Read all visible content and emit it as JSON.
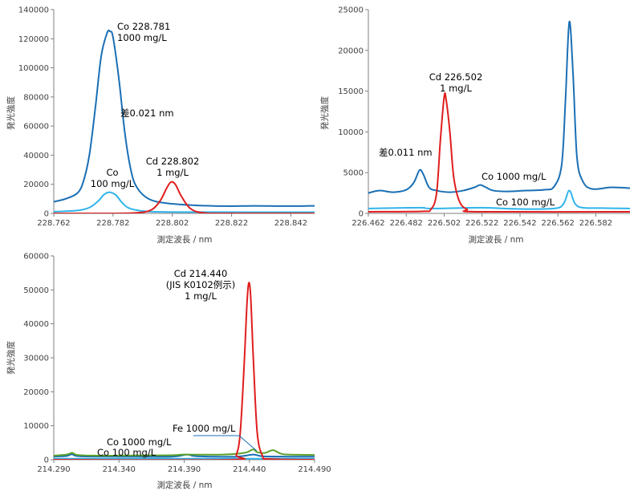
{
  "colors": {
    "co1000": "#1a6fb5",
    "co100": "#31b4ea",
    "cd": "#e01d1d",
    "fe": "#5aa02c",
    "axis": "#7f7f7f",
    "tick_text": "#404040",
    "label_text": "#000000"
  },
  "chart_data": [
    {
      "id": "chart1",
      "type": "line",
      "title": "",
      "xlabel": "測定波長 / nm",
      "ylabel": "発光強度",
      "xlim": [
        228.762,
        228.85
      ],
      "ylim": [
        0,
        140000
      ],
      "x_ticks": [
        228.762,
        228.782,
        228.802,
        228.822,
        228.842
      ],
      "x_tick_labels": [
        "228.762",
        "228.782",
        "228.802",
        "228.822",
        "228.842"
      ],
      "y_ticks": [
        0,
        20000,
        40000,
        60000,
        80000,
        100000,
        120000,
        140000
      ],
      "y_tick_labels": [
        "0",
        "20000",
        "40000",
        "60000",
        "80000",
        "100000",
        "120000",
        "140000"
      ],
      "series": [
        {
          "name": "Co 1000 mg/L",
          "color_key": "co1000",
          "x": [
            228.762,
            228.766,
            228.77,
            228.772,
            228.774,
            228.776,
            228.778,
            228.78,
            228.781,
            228.782,
            228.784,
            228.786,
            228.788,
            228.79,
            228.794,
            228.8,
            228.81,
            228.82,
            228.83,
            228.84,
            228.85
          ],
          "y": [
            8000,
            10000,
            14000,
            22000,
            40000,
            72000,
            108000,
            124000,
            125000,
            121000,
            92000,
            55000,
            30000,
            18000,
            10000,
            7000,
            5500,
            5000,
            5200,
            5000,
            5200
          ]
        },
        {
          "name": "Co 100 mg/L",
          "color_key": "co100",
          "x": [
            228.762,
            228.77,
            228.774,
            228.777,
            228.779,
            228.781,
            228.783,
            228.785,
            228.787,
            228.79,
            228.795,
            228.81,
            228.85
          ],
          "y": [
            1200,
            2000,
            4000,
            8500,
            13000,
            14500,
            12500,
            7500,
            4000,
            2200,
            1200,
            900,
            800
          ]
        },
        {
          "name": "Cd 228.802",
          "color_key": "cd",
          "x": [
            228.762,
            228.78,
            228.79,
            228.795,
            228.798,
            228.8,
            228.8015,
            228.803,
            228.805,
            228.808,
            228.812,
            228.82,
            228.85
          ],
          "y": [
            0,
            0,
            400,
            2500,
            9000,
            17000,
            21500,
            20000,
            12000,
            3500,
            500,
            0,
            0
          ]
        }
      ],
      "annotations": [
        {
          "lines": [
            "Co 228.781",
            "1000 mg/L"
          ]
        },
        {
          "lines": [
            "差0.021 nm"
          ]
        },
        {
          "lines": [
            "Co",
            "100 mg/L"
          ]
        },
        {
          "lines": [
            "Cd 228.802",
            "1 mg/L"
          ]
        }
      ]
    },
    {
      "id": "chart2",
      "type": "line",
      "title": "",
      "xlabel": "測定波長 / nm",
      "ylabel": "発光強度",
      "xlim": [
        226.462,
        226.6
      ],
      "ylim": [
        0,
        25000
      ],
      "x_ticks": [
        226.462,
        226.482,
        226.502,
        226.522,
        226.542,
        226.562,
        226.582
      ],
      "x_tick_labels": [
        "226.462",
        "226.482",
        "226.502",
        "226.522",
        "226.542",
        "226.562",
        "226.582"
      ],
      "y_ticks": [
        0,
        5000,
        10000,
        15000,
        20000,
        25000
      ],
      "y_tick_labels": [
        "0",
        "5000",
        "10000",
        "15000",
        "20000",
        "25000"
      ],
      "series": [
        {
          "name": "Co 1000 mg/L",
          "color_key": "co1000",
          "x": [
            226.462,
            226.468,
            226.475,
            226.482,
            226.486,
            226.489,
            226.491,
            226.494,
            226.498,
            226.505,
            226.512,
            226.518,
            226.521,
            226.524,
            226.528,
            226.535,
            226.545,
            226.555,
            226.56,
            226.564,
            226.566,
            226.568,
            226.57,
            226.572,
            226.575,
            226.58,
            226.59,
            226.6
          ],
          "y": [
            2500,
            2800,
            2600,
            2900,
            3800,
            5300,
            4800,
            3200,
            2800,
            2600,
            2800,
            3200,
            3500,
            3200,
            2800,
            2700,
            2800,
            2900,
            3300,
            6000,
            14000,
            23500,
            17000,
            7000,
            4000,
            3000,
            3200,
            3100
          ]
        },
        {
          "name": "Co 100 mg/L",
          "color_key": "co100",
          "x": [
            226.462,
            226.489,
            226.495,
            226.522,
            226.54,
            226.56,
            226.565,
            226.568,
            226.571,
            226.575,
            226.585,
            226.6
          ],
          "y": [
            600,
            700,
            600,
            700,
            550,
            600,
            1200,
            2800,
            1200,
            700,
            650,
            600
          ]
        },
        {
          "name": "Cd 226.502",
          "color_key": "cd",
          "x": [
            226.462,
            226.49,
            226.495,
            226.498,
            226.5,
            226.502,
            226.503,
            226.505,
            226.507,
            226.51,
            226.514,
            226.52,
            226.6
          ],
          "y": [
            200,
            250,
            500,
            2500,
            9000,
            14300,
            14000,
            10000,
            4500,
            1500,
            500,
            200,
            200
          ]
        }
      ],
      "annotations": [
        {
          "lines": [
            "Cd 226.502",
            "1 mg/L"
          ]
        },
        {
          "lines": [
            "差0.011 nm"
          ]
        },
        {
          "lines": [
            "Co 1000 mg/L"
          ]
        },
        {
          "lines": [
            "Co 100 mg/L"
          ]
        }
      ]
    },
    {
      "id": "chart3",
      "type": "line",
      "title": "",
      "xlabel": "測定波長 / nm",
      "ylabel": "発光強度",
      "xlim": [
        214.29,
        214.49
      ],
      "ylim": [
        0,
        60000
      ],
      "x_ticks": [
        214.29,
        214.34,
        214.39,
        214.44,
        214.49
      ],
      "x_tick_labels": [
        "214.290",
        "214.340",
        "214.390",
        "214.440",
        "214.490"
      ],
      "y_ticks": [
        0,
        10000,
        20000,
        30000,
        40000,
        50000,
        60000
      ],
      "y_tick_labels": [
        "0",
        "10000",
        "20000",
        "30000",
        "40000",
        "50000",
        "60000"
      ],
      "series": [
        {
          "name": "Co 1000 mg/L",
          "color_key": "co1000",
          "x": [
            214.29,
            214.3,
            214.304,
            214.31,
            214.34,
            214.38,
            214.392,
            214.4,
            214.43,
            214.443,
            214.45,
            214.47,
            214.49
          ],
          "y": [
            900,
            1100,
            1600,
            1000,
            900,
            900,
            1500,
            1000,
            900,
            1500,
            1000,
            900,
            900
          ]
        },
        {
          "name": "Co 100 mg/L",
          "color_key": "co100",
          "x": [
            214.29,
            214.39,
            214.49
          ],
          "y": [
            300,
            300,
            300
          ]
        },
        {
          "name": "Fe 1000 mg/L",
          "color_key": "fe",
          "x": [
            214.29,
            214.3,
            214.304,
            214.308,
            214.32,
            214.34,
            214.38,
            214.39,
            214.42,
            214.436,
            214.443,
            214.446,
            214.452,
            214.458,
            214.464,
            214.47,
            214.49
          ],
          "y": [
            1200,
            1500,
            2000,
            1400,
            1200,
            1200,
            1300,
            1500,
            1500,
            2000,
            3000,
            2200,
            2000,
            2800,
            1800,
            1500,
            1400
          ]
        },
        {
          "name": "Cd 214.440",
          "color_key": "cd",
          "x": [
            214.29,
            214.425,
            214.43,
            214.433,
            214.436,
            214.438,
            214.4395,
            214.441,
            214.443,
            214.446,
            214.45,
            214.455,
            214.49
          ],
          "y": [
            0,
            0,
            1500,
            8000,
            28000,
            45000,
            52000,
            48000,
            30000,
            8000,
            1200,
            200,
            0
          ]
        }
      ],
      "annotations": [
        {
          "lines": [
            "Cd 214.440",
            "(JIS K0102例示)",
            "1 mg/L"
          ]
        },
        {
          "lines": [
            "Fe 1000 mg/L"
          ]
        },
        {
          "lines": [
            "Co 1000 mg/L"
          ]
        },
        {
          "lines": [
            "Co 100 mg/L"
          ]
        }
      ]
    }
  ]
}
